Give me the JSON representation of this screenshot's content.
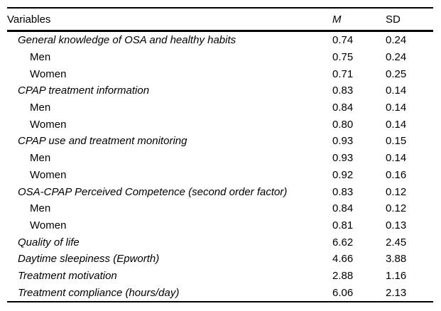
{
  "page": {
    "background_color": "#ffffff",
    "text_color": "#000000",
    "rule_color": "#000000"
  },
  "table": {
    "headers": {
      "variables": "Variables",
      "m": "M",
      "sd": "SD"
    },
    "rows": [
      {
        "label": "General knowledge of OSA and healthy habits",
        "m": "0.74",
        "sd": "0.24",
        "style": "section"
      },
      {
        "label": "Men",
        "m": "0.75",
        "sd": "0.24",
        "style": "sub"
      },
      {
        "label": "Women",
        "m": "0.71",
        "sd": "0.25",
        "style": "sub"
      },
      {
        "label": "CPAP treatment information",
        "m": "0.83",
        "sd": "0.14",
        "style": "section"
      },
      {
        "label": "Men",
        "m": "0.84",
        "sd": "0.14",
        "style": "sub"
      },
      {
        "label": "Women",
        "m": "0.80",
        "sd": "0.14",
        "style": "sub"
      },
      {
        "label": "CPAP use and treatment monitoring",
        "m": "0.93",
        "sd": "0.15",
        "style": "section"
      },
      {
        "label": "Men",
        "m": "0.93",
        "sd": "0.14",
        "style": "sub"
      },
      {
        "label": "Women",
        "m": "0.92",
        "sd": "0.16",
        "style": "sub"
      },
      {
        "label": "OSA-CPAP Perceived Competence (second order factor)",
        "m": "0.83",
        "sd": "0.12",
        "style": "section"
      },
      {
        "label": "Men",
        "m": "0.84",
        "sd": "0.12",
        "style": "sub"
      },
      {
        "label": "Women",
        "m": "0.81",
        "sd": "0.13",
        "style": "sub"
      },
      {
        "label": "Quality of life",
        "m": "6.62",
        "sd": "2.45",
        "style": "section"
      },
      {
        "label": "Daytime sleepiness (Epworth)",
        "m": "4.66",
        "sd": "3.88",
        "style": "section"
      },
      {
        "label": "Treatment motivation",
        "m": "2.88",
        "sd": "1.16",
        "style": "section"
      },
      {
        "label": "Treatment compliance (hours/day)",
        "m": "6.06",
        "sd": "2.13",
        "style": "section"
      }
    ]
  }
}
